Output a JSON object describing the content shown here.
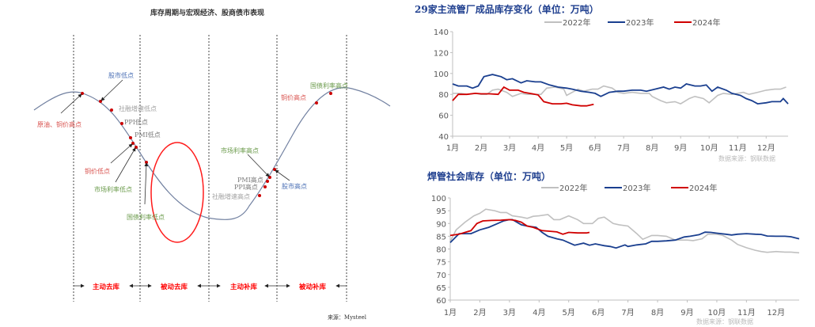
{
  "diagram": {
    "title": "库存周期与宏观经济、股商债市表现",
    "source": "来源：Mysteel",
    "phases": [
      "主动去库",
      "被动去库",
      "主动补库",
      "被动补库"
    ],
    "labels": {
      "stock_low": "股市低点",
      "oil_copper_high": "原油、铜价高点",
      "social_financing_low": "社融增速低点",
      "ppi_low": "PPI低点",
      "pmi_low": "PMI低点",
      "copper_low": "铜价低点",
      "market_rate_low": "市场利率低点",
      "bond_rate_low": "国债利率低点",
      "market_rate_high": "市场利率高点",
      "pmi_high": "PMI高点",
      "ppi_high": "PPI高点",
      "social_financing_high": "社融增速高点",
      "stock_high": "股市高点",
      "copper_high": "铜价高点",
      "bond_rate_high": "国债利率高点"
    },
    "colors": {
      "red": "#d9534f",
      "blue": "#4a6fb5",
      "green": "#6a9a4a",
      "gray": "#a0a0a0",
      "phase": "#ff0000"
    }
  },
  "chart_data": [
    {
      "type": "line",
      "title": "29家主流管厂成品库存变化（单位：万吨）",
      "source": "数据来源：钢联数据",
      "categories": [
        "1月",
        "2月",
        "3月",
        "4月",
        "5月",
        "6月",
        "7月",
        "8月",
        "9月",
        "10月",
        "11月",
        "12月"
      ],
      "ylim": [
        40,
        140
      ],
      "yticks": [
        40,
        60,
        80,
        100,
        120,
        140
      ],
      "xlim": [
        1,
        12.77
      ],
      "legend": "top",
      "grid": false,
      "series": [
        {
          "name": "2022年",
          "color": "#c0c0c0",
          "x": [
            1,
            1.3,
            1.5,
            1.8,
            2,
            2.2,
            2.4,
            2.6,
            2.9,
            3.1,
            3.4,
            3.6,
            3.9,
            4.1,
            4.3,
            4.6,
            4.9,
            5,
            5.4,
            5.6,
            5.9,
            6.1,
            6.3,
            6.6,
            6.8,
            7,
            7.3,
            7.6,
            7.9,
            8,
            8.3,
            8.5,
            8.8,
            9,
            9.3,
            9.5,
            9.8,
            10,
            10.3,
            10.5,
            10.8,
            11,
            11.2,
            11.4,
            11.7,
            12,
            12.3,
            12.5,
            12.7
          ],
          "y": [
            81,
            81,
            80,
            81,
            80,
            80,
            84,
            85,
            82,
            78,
            81,
            80,
            80,
            80,
            86,
            87,
            85,
            79,
            85,
            83,
            85,
            85,
            88,
            86,
            82,
            81,
            82,
            81,
            81,
            78,
            74,
            72,
            73,
            71,
            76,
            78,
            76,
            72,
            79,
            81,
            80,
            81,
            82,
            80,
            82,
            84,
            85,
            85,
            87
          ]
        },
        {
          "name": "2023年",
          "color": "#1a3f8f",
          "x": [
            1,
            1.2,
            1.5,
            1.7,
            1.9,
            2.1,
            2.4,
            2.7,
            2.9,
            3.1,
            3.4,
            3.6,
            3.9,
            4.1,
            4.4,
            4.7,
            5,
            5.2,
            5.5,
            5.8,
            6,
            6.2,
            6.5,
            6.8,
            7,
            7.3,
            7.6,
            7.8,
            8.1,
            8.4,
            8.6,
            8.8,
            9,
            9.2,
            9.5,
            9.7,
            9.9,
            10.1,
            10.3,
            10.6,
            10.8,
            11.1,
            11.3,
            11.5,
            11.7,
            12,
            12.2,
            12.5,
            12.6,
            12.77
          ],
          "y": [
            90,
            88,
            88,
            86,
            88,
            97,
            99,
            97,
            94,
            95,
            91,
            93,
            92,
            92,
            89,
            87,
            86,
            85,
            83,
            82,
            81,
            78,
            82,
            83,
            83,
            84,
            84,
            83,
            85,
            87,
            85,
            87,
            86,
            90,
            88,
            88,
            89,
            83,
            87,
            84,
            81,
            79,
            76,
            74,
            71,
            72,
            73,
            73,
            76,
            71
          ]
        },
        {
          "name": "2024年",
          "color": "#d00000",
          "x": [
            1,
            1.2,
            1.5,
            1.8,
            2,
            2.3,
            2.6,
            2.8,
            3,
            3.3,
            3.5,
            3.8,
            4,
            4.2,
            4.5,
            4.8,
            5,
            5.2,
            5.5,
            5.7,
            5.95
          ],
          "y": [
            74,
            80,
            80,
            81,
            80.5,
            80.5,
            80,
            87,
            84,
            84,
            82,
            80.5,
            79.5,
            73,
            71,
            71,
            71.5,
            70,
            69,
            69,
            70.5
          ]
        }
      ]
    },
    {
      "type": "line",
      "title": "焊管社会库存（单位：万吨）",
      "source": "数据来源：钢联数据",
      "categories": [
        "1月",
        "2月",
        "3月",
        "4月",
        "5月",
        "6月",
        "7月",
        "8月",
        "9月",
        "10月",
        "11月",
        "12月"
      ],
      "ylim": [
        60,
        100
      ],
      "yticks": [
        60,
        65,
        70,
        75,
        80,
        85,
        90,
        95,
        100
      ],
      "xlim": [
        1,
        12.78
      ],
      "legend": "top",
      "grid": false,
      "series": [
        {
          "name": "2022年",
          "color": "#c0c0c0",
          "x": [
            1,
            1.2,
            1.5,
            1.8,
            2,
            2.2,
            2.5,
            2.7,
            2.9,
            3.1,
            3.4,
            3.6,
            3.8,
            4,
            4.3,
            4.5,
            4.7,
            5,
            5.3,
            5.5,
            5.8,
            6,
            6.2,
            6.5,
            6.7,
            7,
            7.3,
            7.5,
            7.8,
            8,
            8.3,
            8.6,
            8.8,
            9,
            9.2,
            9.5,
            9.7,
            10,
            10.2,
            10.5,
            10.7,
            11,
            11.3,
            11.5,
            11.7,
            12,
            12.3,
            12.5,
            12.78
          ],
          "y": [
            83,
            87.5,
            90.5,
            93,
            94,
            95.6,
            95,
            94.3,
            94.3,
            93,
            92.5,
            92,
            92.8,
            93,
            93.5,
            91.5,
            91.5,
            93,
            91.5,
            90,
            90,
            92,
            92.5,
            90,
            89.5,
            89,
            86,
            83.8,
            85.3,
            85.3,
            85,
            83.5,
            83.5,
            83.5,
            83.3,
            84,
            85.8,
            85.8,
            85.3,
            83.5,
            81.8,
            80.5,
            79.5,
            79,
            78.7,
            79,
            78.8,
            78.8,
            78.5
          ]
        },
        {
          "name": "2023年",
          "color": "#1a3f8f",
          "x": [
            1,
            1.3,
            1.5,
            1.7,
            2,
            2.3,
            2.6,
            2.8,
            3,
            3.1,
            3.4,
            3.6,
            3.9,
            4.1,
            4.3,
            4.6,
            4.8,
            5,
            5.2,
            5.5,
            5.7,
            5.9,
            6.2,
            6.4,
            6.6,
            6.9,
            7,
            7.3,
            7.6,
            7.8,
            8,
            8.3,
            8.6,
            8.9,
            9.1,
            9.4,
            9.6,
            9.8,
            10,
            10.3,
            10.5,
            10.7,
            11,
            11.3,
            11.5,
            11.7,
            12,
            12.3,
            12.5,
            12.78
          ],
          "y": [
            82.5,
            86,
            86,
            86,
            87.5,
            88.5,
            90,
            91,
            91.5,
            91.5,
            89.5,
            89,
            88.5,
            86.5,
            85,
            84,
            83.5,
            82.5,
            81.5,
            82.3,
            81.5,
            82,
            81.3,
            81,
            80.4,
            81.6,
            81,
            81.6,
            82,
            83,
            83,
            83.2,
            83.5,
            84.7,
            85,
            85.6,
            86.6,
            86.5,
            86.2,
            85.8,
            85.5,
            85.8,
            86,
            85.8,
            85.7,
            85.1,
            85,
            85,
            84.8,
            84
          ]
        },
        {
          "name": "2024年",
          "color": "#d00000",
          "x": [
            1,
            1.3,
            1.5,
            1.7,
            1.9,
            2.1,
            2.4,
            2.7,
            3,
            3.2,
            3.4,
            3.6,
            3.8,
            4.1,
            4.3,
            4.6,
            4.8,
            5,
            5.3,
            5.6,
            5.7
          ],
          "y": [
            85.3,
            85.8,
            86.5,
            87.2,
            90,
            91,
            91.2,
            91.3,
            91.5,
            91.2,
            90.5,
            89,
            88.5,
            87.2,
            87,
            86.7,
            85.8,
            86.5,
            86.3,
            86.3,
            86.5
          ]
        }
      ]
    }
  ]
}
